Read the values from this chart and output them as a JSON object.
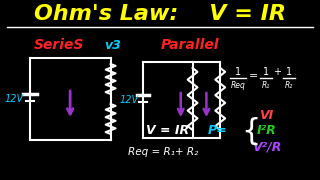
{
  "bg_color": "#000000",
  "title_text": "Ohm's Law:    V = IR",
  "title_color": "#ffff00",
  "title_fontsize": 16,
  "series_text": "SerieS",
  "series_color": "#ff2222",
  "vs_text": "v3",
  "vs_color": "#00ccff",
  "parallel_text": "Parallel",
  "parallel_color": "#ff2222",
  "label_12v_left": "12V",
  "label_12v_right": "12V",
  "label_color_12v": "#00ccff",
  "veq_text": "V = IR",
  "veq_color": "#ffffff",
  "req_text": "Req = R₁+ R₂",
  "req_color": "#ffffff",
  "p_eq_text": "P=",
  "p_eq_color": "#00ccff",
  "vi_text": "VI",
  "vi_color": "#ff4444",
  "i2r_text": "I²R",
  "i2r_color": "#22cc22",
  "v2r_text": "V²/R",
  "v2r_color": "#aa44ff",
  "arrow_color": "#9933cc",
  "circuit_color": "#ffffff",
  "resistor_color": "#ffffff"
}
